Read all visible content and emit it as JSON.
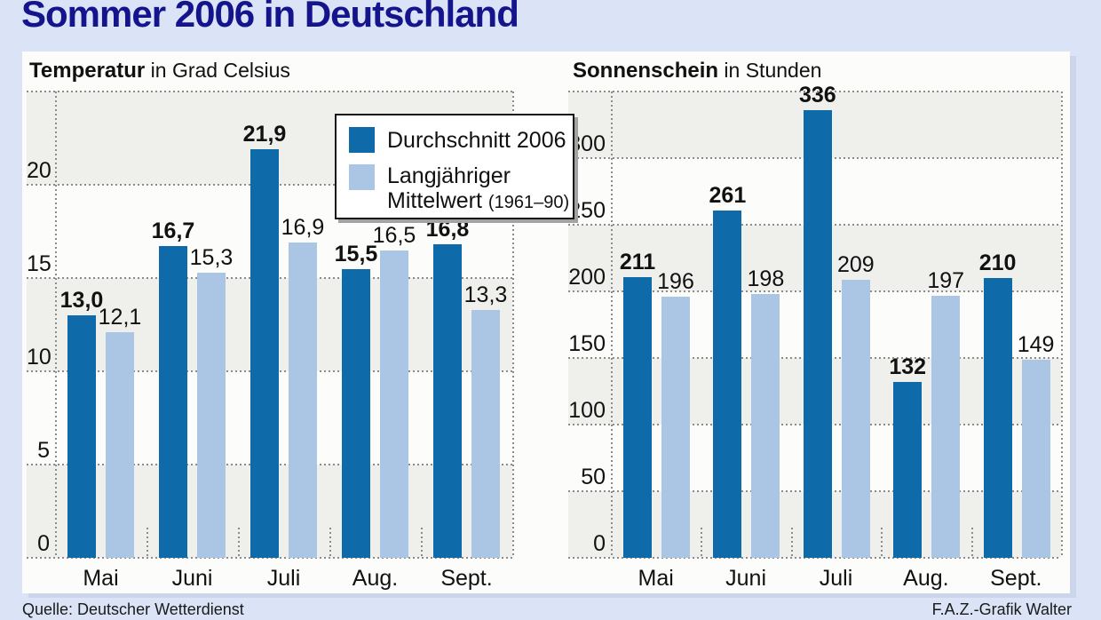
{
  "page": {
    "title": "Sommer 2006 in Deutschland",
    "source": "Quelle: Deutscher Wetterdienst",
    "credit": "F.A.Z.-Grafik Walter",
    "colors": {
      "title_navy": "#14148c",
      "page_background": "#dbe3f7",
      "panel_background": "#fcfcfb",
      "band_gray": "#efefec",
      "series_2006_blue": "#0e6aa8",
      "series_mean_lightblue": "#abc5e4"
    }
  },
  "legend": {
    "series1_label": "Durchschnitt 2006",
    "series2_line1": "Langjähriger",
    "series2_line2": "Mittelwert",
    "series2_note": "(1961–90)"
  },
  "chart_data": [
    {
      "type": "bar",
      "title": "Temperatur",
      "unit": "in Grad Celsius",
      "categories": [
        "Mai",
        "Juni",
        "Juli",
        "Aug.",
        "Sept."
      ],
      "series": [
        {
          "name": "Durchschnitt 2006",
          "color": "#0e6aa8",
          "values": [
            13.0,
            16.7,
            21.9,
            15.5,
            16.8
          ],
          "labels": [
            "13,0",
            "16,7",
            "21,9",
            "15,5",
            "16,8"
          ]
        },
        {
          "name": "Langjähriger Mittelwert (1961–90)",
          "color": "#abc5e4",
          "values": [
            12.1,
            15.3,
            16.9,
            16.5,
            13.3
          ],
          "labels": [
            "12,1",
            "15,3",
            "16,9",
            "16,5",
            "13,3"
          ]
        }
      ],
      "ylim": [
        0,
        25
      ],
      "ticks": [
        0,
        5,
        10,
        15,
        20
      ],
      "grid_interval": 5,
      "grid": true,
      "legend_position": "top-right-overlay"
    },
    {
      "type": "bar",
      "title": "Sonnenschein",
      "unit": "in Stunden",
      "categories": [
        "Mai",
        "Juni",
        "Juli",
        "Aug.",
        "Sept."
      ],
      "series": [
        {
          "name": "Durchschnitt 2006",
          "color": "#0e6aa8",
          "values": [
            211,
            261,
            336,
            132,
            210
          ],
          "labels": [
            "211",
            "261",
            "336",
            "132",
            "210"
          ]
        },
        {
          "name": "Langjähriger Mittelwert (1961–90)",
          "color": "#abc5e4",
          "values": [
            196,
            198,
            209,
            197,
            149
          ],
          "labels": [
            "196",
            "198",
            "209",
            "197",
            "149"
          ]
        }
      ],
      "ylim": [
        0,
        350
      ],
      "ticks": [
        0,
        50,
        100,
        150,
        200,
        250,
        300
      ],
      "grid_interval": 50,
      "grid": true,
      "legend_position": "shared"
    }
  ]
}
